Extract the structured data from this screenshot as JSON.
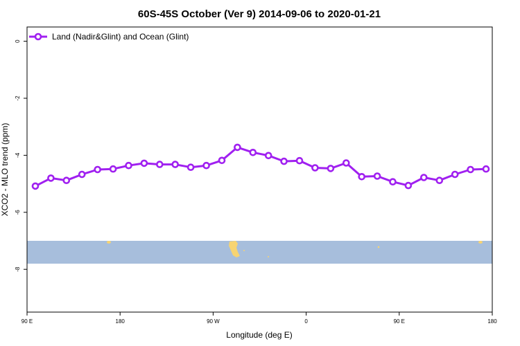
{
  "chart_data": {
    "type": "line",
    "title": "60S-45S October (Ver 9)   2014-09-06 to 2020-01-21",
    "xlabel": "Longitude (deg E)",
    "ylabel": "XCO2 - MLO trend (ppm)",
    "ylim": [
      -9.5,
      0.5
    ],
    "y_ticks": [
      0,
      -2,
      -4,
      -6,
      -8
    ],
    "x_ticks": [
      "90 E",
      "180",
      "90 W",
      "0",
      "90 E",
      "180"
    ],
    "grid": false,
    "legend_position": "top-left",
    "series": [
      {
        "name": "Land (Nadir&Glint) and Ocean (Glint)",
        "color": "#a020f0",
        "values": [
          -5.08,
          -4.8,
          -4.88,
          -4.67,
          -4.5,
          -4.48,
          -4.36,
          -4.28,
          -4.32,
          -4.32,
          -4.42,
          -4.36,
          -4.18,
          -3.72,
          -3.9,
          -4.01,
          -4.21,
          -4.19,
          -4.44,
          -4.46,
          -4.27,
          -4.75,
          -4.73,
          -4.93,
          -5.06,
          -4.78,
          -4.88,
          -4.67,
          -4.5,
          -4.48
        ]
      }
    ],
    "map_band": {
      "ocean_color": "#a7bedc",
      "land_color": "#f7d472"
    }
  }
}
